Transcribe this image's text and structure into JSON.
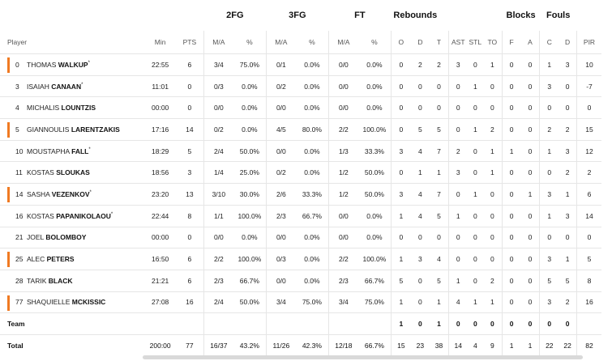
{
  "groups": {
    "fg2": "2FG",
    "fg3": "3FG",
    "ft": "FT",
    "reb": "Rebounds",
    "blk": "Blocks",
    "fouls": "Fouls"
  },
  "headers": {
    "player": "Player",
    "min": "Min",
    "pts": "PTS",
    "fg2_ma": "M/A",
    "fg2_pct": "%",
    "fg3_ma": "M/A",
    "fg3_pct": "%",
    "ft_ma": "M/A",
    "ft_pct": "%",
    "o": "O",
    "d": "D",
    "t": "T",
    "ast": "AST",
    "stl": "STL",
    "to": "TO",
    "f": "F",
    "a": "A",
    "c": "C",
    "dr": "D",
    "pir": "PIR"
  },
  "players": [
    {
      "num": "0",
      "first": "THOMAS",
      "last": "WALKUP",
      "mark": "*",
      "starter": true,
      "min": "22:55",
      "pts": "6",
      "fg2": "3/4",
      "fg2p": "75.0%",
      "fg3": "0/1",
      "fg3p": "0.0%",
      "ft": "0/0",
      "ftp": "0.0%",
      "o": "0",
      "d": "2",
      "t": "2",
      "ast": "3",
      "stl": "0",
      "to": "1",
      "f": "0",
      "a": "0",
      "c": "1",
      "dr": "3",
      "pir": "10"
    },
    {
      "num": "3",
      "first": "ISAIAH",
      "last": "CANAAN",
      "mark": "*",
      "starter": false,
      "min": "11:01",
      "pts": "0",
      "fg2": "0/3",
      "fg2p": "0.0%",
      "fg3": "0/2",
      "fg3p": "0.0%",
      "ft": "0/0",
      "ftp": "0.0%",
      "o": "0",
      "d": "0",
      "t": "0",
      "ast": "0",
      "stl": "1",
      "to": "0",
      "f": "0",
      "a": "0",
      "c": "3",
      "dr": "0",
      "pir": "-7"
    },
    {
      "num": "4",
      "first": "MICHALIS",
      "last": "LOUNTZIS",
      "mark": "",
      "starter": false,
      "min": "00:00",
      "pts": "0",
      "fg2": "0/0",
      "fg2p": "0.0%",
      "fg3": "0/0",
      "fg3p": "0.0%",
      "ft": "0/0",
      "ftp": "0.0%",
      "o": "0",
      "d": "0",
      "t": "0",
      "ast": "0",
      "stl": "0",
      "to": "0",
      "f": "0",
      "a": "0",
      "c": "0",
      "dr": "0",
      "pir": "0"
    },
    {
      "num": "5",
      "first": "GIANNOULIS",
      "last": "LARENTZAKIS",
      "mark": "",
      "starter": true,
      "min": "17:16",
      "pts": "14",
      "fg2": "0/2",
      "fg2p": "0.0%",
      "fg3": "4/5",
      "fg3p": "80.0%",
      "ft": "2/2",
      "ftp": "100.0%",
      "o": "0",
      "d": "5",
      "t": "5",
      "ast": "0",
      "stl": "1",
      "to": "2",
      "f": "0",
      "a": "0",
      "c": "2",
      "dr": "2",
      "pir": "15"
    },
    {
      "num": "10",
      "first": "MOUSTAPHA",
      "last": "FALL",
      "mark": "*",
      "starter": false,
      "min": "18:29",
      "pts": "5",
      "fg2": "2/4",
      "fg2p": "50.0%",
      "fg3": "0/0",
      "fg3p": "0.0%",
      "ft": "1/3",
      "ftp": "33.3%",
      "o": "3",
      "d": "4",
      "t": "7",
      "ast": "2",
      "stl": "0",
      "to": "1",
      "f": "1",
      "a": "0",
      "c": "1",
      "dr": "3",
      "pir": "12"
    },
    {
      "num": "11",
      "first": "KOSTAS",
      "last": "SLOUKAS",
      "mark": "",
      "starter": false,
      "min": "18:56",
      "pts": "3",
      "fg2": "1/4",
      "fg2p": "25.0%",
      "fg3": "0/2",
      "fg3p": "0.0%",
      "ft": "1/2",
      "ftp": "50.0%",
      "o": "0",
      "d": "1",
      "t": "1",
      "ast": "3",
      "stl": "0",
      "to": "1",
      "f": "0",
      "a": "0",
      "c": "0",
      "dr": "2",
      "pir": "2"
    },
    {
      "num": "14",
      "first": "SASHA",
      "last": "VEZENKOV",
      "mark": "*",
      "starter": true,
      "min": "23:20",
      "pts": "13",
      "fg2": "3/10",
      "fg2p": "30.0%",
      "fg3": "2/6",
      "fg3p": "33.3%",
      "ft": "1/2",
      "ftp": "50.0%",
      "o": "3",
      "d": "4",
      "t": "7",
      "ast": "0",
      "stl": "1",
      "to": "0",
      "f": "0",
      "a": "1",
      "c": "3",
      "dr": "1",
      "pir": "6"
    },
    {
      "num": "16",
      "first": "KOSTAS",
      "last": "PAPANIKOLAOU",
      "mark": "*",
      "starter": false,
      "min": "22:44",
      "pts": "8",
      "fg2": "1/1",
      "fg2p": "100.0%",
      "fg3": "2/3",
      "fg3p": "66.7%",
      "ft": "0/0",
      "ftp": "0.0%",
      "o": "1",
      "d": "4",
      "t": "5",
      "ast": "1",
      "stl": "0",
      "to": "0",
      "f": "0",
      "a": "0",
      "c": "1",
      "dr": "3",
      "pir": "14"
    },
    {
      "num": "21",
      "first": "JOEL",
      "last": "BOLOMBOY",
      "mark": "",
      "starter": false,
      "min": "00:00",
      "pts": "0",
      "fg2": "0/0",
      "fg2p": "0.0%",
      "fg3": "0/0",
      "fg3p": "0.0%",
      "ft": "0/0",
      "ftp": "0.0%",
      "o": "0",
      "d": "0",
      "t": "0",
      "ast": "0",
      "stl": "0",
      "to": "0",
      "f": "0",
      "a": "0",
      "c": "0",
      "dr": "0",
      "pir": "0"
    },
    {
      "num": "25",
      "first": "ALEC",
      "last": "PETERS",
      "mark": "",
      "starter": true,
      "min": "16:50",
      "pts": "6",
      "fg2": "2/2",
      "fg2p": "100.0%",
      "fg3": "0/3",
      "fg3p": "0.0%",
      "ft": "2/2",
      "ftp": "100.0%",
      "o": "1",
      "d": "3",
      "t": "4",
      "ast": "0",
      "stl": "0",
      "to": "0",
      "f": "0",
      "a": "0",
      "c": "3",
      "dr": "1",
      "pir": "5"
    },
    {
      "num": "28",
      "first": "TARIK",
      "last": "BLACK",
      "mark": "",
      "starter": false,
      "min": "21:21",
      "pts": "6",
      "fg2": "2/3",
      "fg2p": "66.7%",
      "fg3": "0/0",
      "fg3p": "0.0%",
      "ft": "2/3",
      "ftp": "66.7%",
      "o": "5",
      "d": "0",
      "t": "5",
      "ast": "1",
      "stl": "0",
      "to": "2",
      "f": "0",
      "a": "0",
      "c": "5",
      "dr": "5",
      "pir": "8"
    },
    {
      "num": "77",
      "first": "SHAQUIELLE",
      "last": "MCKISSIC",
      "mark": "",
      "starter": true,
      "min": "27:08",
      "pts": "16",
      "fg2": "2/4",
      "fg2p": "50.0%",
      "fg3": "3/4",
      "fg3p": "75.0%",
      "ft": "3/4",
      "ftp": "75.0%",
      "o": "1",
      "d": "0",
      "t": "1",
      "ast": "4",
      "stl": "1",
      "to": "1",
      "f": "0",
      "a": "0",
      "c": "3",
      "dr": "2",
      "pir": "16"
    }
  ],
  "team": {
    "label": "Team",
    "min": "",
    "pts": "",
    "fg2": "",
    "fg2p": "",
    "fg3": "",
    "fg3p": "",
    "ft": "",
    "ftp": "",
    "o": "1",
    "d": "0",
    "t": "1",
    "ast": "0",
    "stl": "0",
    "to": "0",
    "f": "0",
    "a": "0",
    "c": "0",
    "dr": "0",
    "pir": ""
  },
  "total": {
    "label": "Total",
    "min": "200:00",
    "pts": "77",
    "fg2": "16/37",
    "fg2p": "43.2%",
    "fg3": "11/26",
    "fg3p": "42.3%",
    "ft": "12/18",
    "ftp": "66.7%",
    "o": "15",
    "d": "23",
    "t": "38",
    "ast": "14",
    "stl": "4",
    "to": "9",
    "f": "1",
    "a": "1",
    "c": "22",
    "dr": "22",
    "pir": "82"
  }
}
